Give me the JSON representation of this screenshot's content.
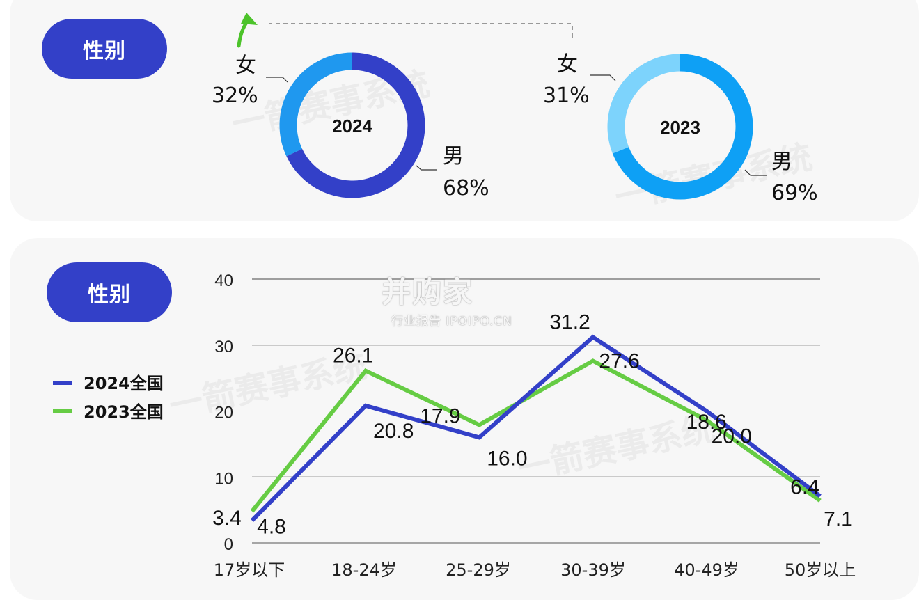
{
  "colors": {
    "series_2024": "#3340c8",
    "series_2023": "#66cc44",
    "donut_2024_male": "#3340c8",
    "donut_2024_female": "#1f98ef",
    "donut_2023_male": "#0ea0f5",
    "donut_2023_female": "#7dd3fc",
    "arrow": "#4cc32a"
  },
  "watermarks": {
    "system_text": "一箭赛事系统",
    "logo_main": "并购家",
    "logo_sub": "行业报告 IPOIPO.CN"
  },
  "gender_section": {
    "title": "性别",
    "donuts": [
      {
        "year_label": "2024",
        "female": {
          "label": "女",
          "percent_label": "32%",
          "value": 32
        },
        "male": {
          "label": "男",
          "percent_label": "68%",
          "value": 68
        }
      },
      {
        "year_label": "2023",
        "female": {
          "label": "女",
          "percent_label": "31%",
          "value": 31
        },
        "male": {
          "label": "男",
          "percent_label": "69%",
          "value": 69
        }
      }
    ]
  },
  "age_section": {
    "title": "性别",
    "legend": [
      {
        "label": "2024全国",
        "color_key": "series_2024"
      },
      {
        "label": "2023全国",
        "color_key": "series_2023"
      }
    ]
  },
  "chart_data": [
    {
      "type": "pie",
      "title": "2024",
      "categories": [
        "女",
        "男"
      ],
      "values": [
        32,
        68
      ]
    },
    {
      "type": "pie",
      "title": "2023",
      "categories": [
        "女",
        "男"
      ],
      "values": [
        31,
        69
      ]
    },
    {
      "type": "line",
      "categories": [
        "17岁以下",
        "18-24岁",
        "25-29岁",
        "30-39岁",
        "40-49岁",
        "50岁以上"
      ],
      "series": [
        {
          "name": "2024全国",
          "values": [
            3.4,
            20.8,
            16.0,
            31.2,
            20.0,
            7.1
          ],
          "labels": [
            "3.4",
            "20.8",
            "16.0",
            "31.2",
            "20.0",
            "7.1"
          ]
        },
        {
          "name": "2023全国",
          "values": [
            4.8,
            26.1,
            17.9,
            27.6,
            18.6,
            6.4
          ],
          "labels": [
            "4.8",
            "26.1",
            "17.9",
            "27.6",
            "18.6",
            "6.4"
          ]
        }
      ],
      "yticks": [
        "0",
        "10",
        "20",
        "30",
        "40"
      ],
      "ylim": [
        0,
        40
      ],
      "grid": true,
      "legend": "left"
    }
  ]
}
